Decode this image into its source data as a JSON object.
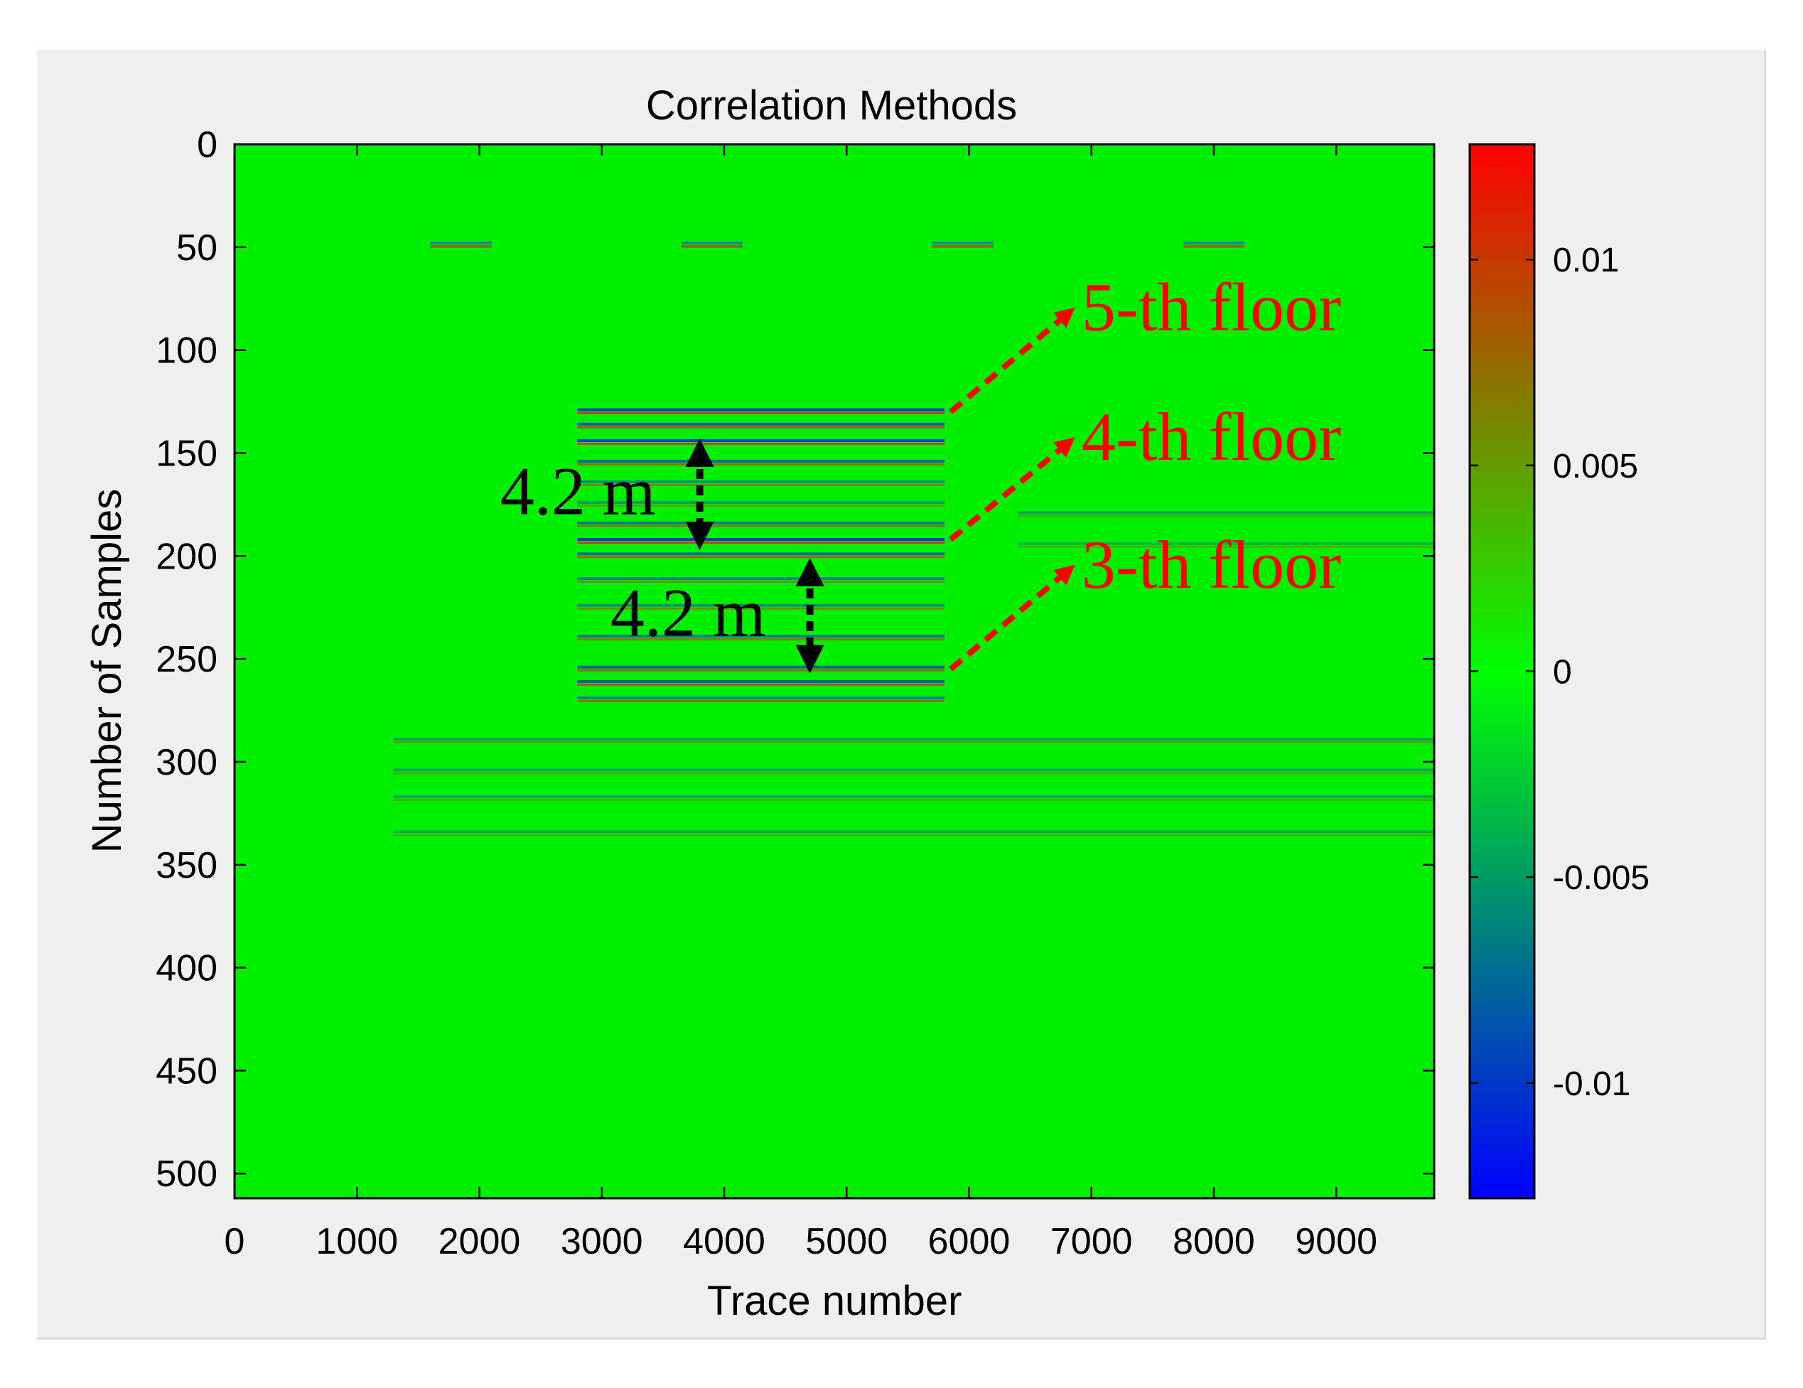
{
  "chart_data": {
    "type": "heatmap",
    "title": "Correlation Methods",
    "xlabel": "Trace number",
    "ylabel": "Number of Samples",
    "xlim": [
      0,
      9800
    ],
    "ylim": [
      0,
      512
    ],
    "y_reversed": true,
    "xticks": [
      0,
      1000,
      2000,
      3000,
      4000,
      5000,
      6000,
      7000,
      8000,
      9000
    ],
    "xtick_labels": [
      "0",
      "1000",
      "2000",
      "3000",
      "4000",
      "5000",
      "6000",
      "7000",
      "8000",
      "9000"
    ],
    "yticks": [
      0,
      50,
      100,
      150,
      200,
      250,
      300,
      350,
      400,
      450,
      500
    ],
    "ytick_labels": [
      "0",
      "50",
      "100",
      "150",
      "200",
      "250",
      "300",
      "350",
      "400",
      "450",
      "500"
    ],
    "colorbar": {
      "range": [
        -0.0128,
        0.0128
      ],
      "ticks": [
        0.01,
        0.005,
        0,
        -0.005,
        -0.01
      ],
      "tick_labels": [
        "0.01",
        "0.005",
        "0",
        "-0.005",
        "-0.01"
      ],
      "colors": [
        "#0000ff",
        "#00ff00",
        "#ff0000"
      ]
    },
    "background_color": "#00f000",
    "reflectors": [
      {
        "sample": 130,
        "x_range": [
          2800,
          5800
        ],
        "strength": 0.9
      },
      {
        "sample": 137,
        "x_range": [
          2800,
          5800
        ],
        "strength": 0.8
      },
      {
        "sample": 145,
        "x_range": [
          2800,
          5800
        ],
        "strength": 0.9
      },
      {
        "sample": 155,
        "x_range": [
          2800,
          5800
        ],
        "strength": 0.7
      },
      {
        "sample": 165,
        "x_range": [
          2800,
          5800
        ],
        "strength": 0.5
      },
      {
        "sample": 175,
        "x_range": [
          2800,
          5800
        ],
        "strength": 0.4
      },
      {
        "sample": 185,
        "x_range": [
          2800,
          5800
        ],
        "strength": 0.6
      },
      {
        "sample": 193,
        "x_range": [
          2800,
          5800
        ],
        "strength": 0.9
      },
      {
        "sample": 200,
        "x_range": [
          2800,
          5800
        ],
        "strength": 0.7
      },
      {
        "sample": 212,
        "x_range": [
          2800,
          5800
        ],
        "strength": 0.5
      },
      {
        "sample": 225,
        "x_range": [
          2800,
          5800
        ],
        "strength": 0.5
      },
      {
        "sample": 240,
        "x_range": [
          2800,
          5800
        ],
        "strength": 0.6
      },
      {
        "sample": 255,
        "x_range": [
          2800,
          5800
        ],
        "strength": 0.7
      },
      {
        "sample": 262,
        "x_range": [
          2800,
          5800
        ],
        "strength": 0.8
      },
      {
        "sample": 270,
        "x_range": [
          2800,
          5800
        ],
        "strength": 0.6
      },
      {
        "sample": 290,
        "x_range": [
          1300,
          9800
        ],
        "strength": 0.4
      },
      {
        "sample": 305,
        "x_range": [
          1300,
          9800
        ],
        "strength": 0.35
      },
      {
        "sample": 318,
        "x_range": [
          1300,
          9800
        ],
        "strength": 0.35
      },
      {
        "sample": 335,
        "x_range": [
          1300,
          9800
        ],
        "strength": 0.3
      },
      {
        "sample": 180,
        "x_range": [
          6400,
          9800
        ],
        "strength": 0.35
      },
      {
        "sample": 195,
        "x_range": [
          6400,
          9800
        ],
        "strength": 0.3
      }
    ],
    "top_marks": [
      {
        "sample": 50,
        "x_range": [
          1600,
          2100
        ]
      },
      {
        "sample": 50,
        "x_range": [
          3650,
          4150
        ]
      },
      {
        "sample": 50,
        "x_range": [
          5700,
          6200
        ]
      },
      {
        "sample": 50,
        "x_range": [
          7750,
          8250
        ]
      }
    ],
    "annotations": {
      "spacing": [
        {
          "label": "4.2 m",
          "arrow_x": 3800,
          "from_sample": 145,
          "to_sample": 195
        },
        {
          "label": "4.2 m",
          "arrow_x": 4700,
          "from_sample": 203,
          "to_sample": 255
        }
      ],
      "floors": [
        {
          "label": "5-th floor",
          "from": [
            5850,
            130
          ],
          "to": [
            6850,
            80
          ]
        },
        {
          "label": "4-th floor",
          "from": [
            5850,
            192
          ],
          "to": [
            6850,
            143
          ]
        },
        {
          "label": "3-th floor",
          "from": [
            5850,
            255
          ],
          "to": [
            6850,
            205
          ]
        }
      ],
      "floor_color": "#ff0000"
    }
  }
}
